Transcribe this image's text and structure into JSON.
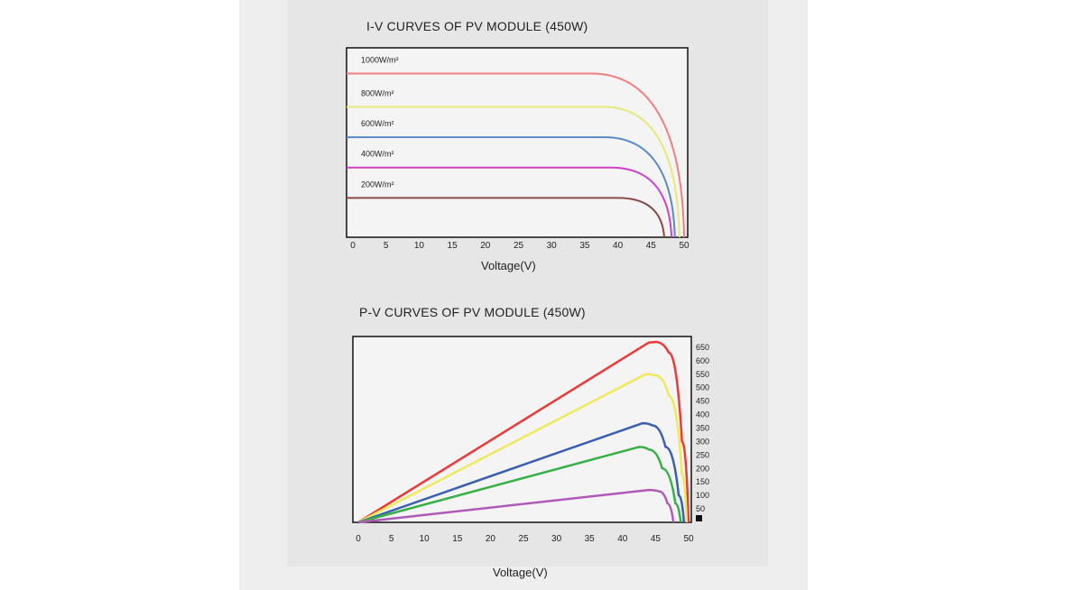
{
  "chart_data": [
    {
      "type": "line",
      "title": "I-V CURVES OF PV MODULE (450W)",
      "xlabel": "Voltage(V)",
      "ylabel": "",
      "xlim": [
        0,
        50
      ],
      "ylim": [
        0,
        12.5
      ],
      "x_ticks": [
        0,
        5,
        10,
        15,
        20,
        25,
        30,
        35,
        40,
        45,
        50
      ],
      "grid": false,
      "series": [
        {
          "name": "1000W/m²",
          "color": "#f08080",
          "isc": 10.8,
          "voc": 50.0,
          "knee": 36,
          "y": [
            10.8,
            10.8,
            10.8,
            10.8,
            10.8,
            10.8,
            10.8,
            10.8,
            10.7,
            9.3,
            0
          ]
        },
        {
          "name": "800W/m²",
          "color": "#e8e87a",
          "isc": 8.6,
          "voc": 49.3,
          "knee": 38,
          "y": [
            8.6,
            8.6,
            8.6,
            8.6,
            8.6,
            8.6,
            8.6,
            8.6,
            8.5,
            6.8,
            0
          ]
        },
        {
          "name": "600W/m²",
          "color": "#5a8ac6",
          "isc": 6.6,
          "voc": 48.6,
          "knee": 38,
          "y": [
            6.6,
            6.6,
            6.6,
            6.6,
            6.6,
            6.6,
            6.6,
            6.6,
            6.5,
            4.8,
            null
          ]
        },
        {
          "name": "400W/m²",
          "color": "#d040c8",
          "isc": 4.6,
          "voc": 48.1,
          "knee": 39,
          "y": [
            4.6,
            4.6,
            4.6,
            4.6,
            4.6,
            4.6,
            4.6,
            4.6,
            4.5,
            3.2,
            null
          ]
        },
        {
          "name": "200W/m²",
          "color": "#8a4a4a",
          "isc": 2.6,
          "voc": 47.0,
          "knee": 40,
          "y": [
            2.6,
            2.6,
            2.6,
            2.6,
            2.6,
            2.6,
            2.6,
            2.6,
            2.5,
            1.4,
            null
          ]
        }
      ]
    },
    {
      "type": "line",
      "title": "P-V CURVES OF PV MODULE (450W)",
      "xlabel": "Voltage(V)",
      "ylabel": "",
      "xlim": [
        0,
        50
      ],
      "ylim": [
        0,
        690
      ],
      "x_ticks": [
        0,
        5,
        10,
        15,
        20,
        25,
        30,
        35,
        40,
        45,
        50
      ],
      "y_ticks": [
        50,
        100,
        150,
        200,
        250,
        300,
        350,
        400,
        450,
        500,
        550,
        600,
        650
      ],
      "y_axis_side": "right",
      "grid": false,
      "series": [
        {
          "color": "#e83c3c",
          "points": [
            [
              0,
              0
            ],
            [
              44,
              668
            ],
            [
              45,
              670
            ],
            [
              47,
              630
            ],
            [
              49,
              300
            ],
            [
              50,
              0
            ]
          ]
        },
        {
          "color": "#eeea5a",
          "points": [
            [
              0,
              0
            ],
            [
              43.5,
              550
            ],
            [
              45,
              545
            ],
            [
              47,
              470
            ],
            [
              49,
              180
            ],
            [
              49.7,
              0
            ]
          ]
        },
        {
          "color": "#3a5fb0",
          "points": [
            [
              0,
              0
            ],
            [
              43,
              368
            ],
            [
              44.5,
              360
            ],
            [
              46.5,
              280
            ],
            [
              48.5,
              100
            ],
            [
              49.3,
              0
            ]
          ]
        },
        {
          "color": "#38b048",
          "points": [
            [
              0,
              0
            ],
            [
              42.5,
              280
            ],
            [
              44,
              270
            ],
            [
              46,
              200
            ],
            [
              48,
              70
            ],
            [
              48.8,
              0
            ]
          ]
        },
        {
          "color": "#b05ab8",
          "points": [
            [
              0,
              0
            ],
            [
              44,
              120
            ],
            [
              45.5,
              115
            ],
            [
              46.8,
              70
            ],
            [
              47.7,
              0
            ]
          ]
        }
      ]
    }
  ]
}
